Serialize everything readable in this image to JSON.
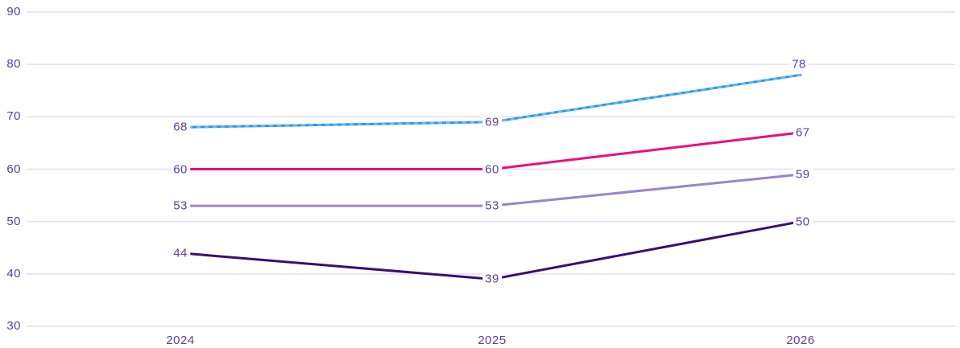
{
  "chart_data": {
    "type": "line",
    "title": "",
    "xlabel": "",
    "ylabel": "",
    "categories": [
      "2024",
      "2025",
      "2026"
    ],
    "y_ticks": [
      90,
      80,
      70,
      60,
      50,
      40,
      30
    ],
    "ylim": [
      30,
      90
    ],
    "grid": "horizontal-only",
    "legend": "none",
    "series": [
      {
        "name": "series-blue",
        "color": "#2598e8",
        "dash_overlay_color": "#6db9f0",
        "style": "solid-with-dotted-texture",
        "values": [
          68,
          69,
          78
        ],
        "labels": [
          "68",
          "69",
          "78"
        ],
        "label_placements": [
          "center",
          "center",
          "above"
        ]
      },
      {
        "name": "series-pink",
        "color": "#ee0c7c",
        "style": "solid",
        "values": [
          60,
          60,
          67
        ],
        "labels": [
          "60",
          "60",
          "67"
        ],
        "label_placements": [
          "center",
          "center",
          "right"
        ]
      },
      {
        "name": "series-light-purple",
        "color": "#9a83d0",
        "style": "solid",
        "values": [
          53,
          53,
          59
        ],
        "labels": [
          "53",
          "53",
          "59"
        ],
        "label_placements": [
          "center",
          "center",
          "right"
        ]
      },
      {
        "name": "series-dark-purple",
        "color": "#390e72",
        "style": "solid",
        "values": [
          44,
          39,
          50
        ],
        "labels": [
          "44",
          "39",
          "50"
        ],
        "label_placements": [
          "center",
          "center",
          "right"
        ]
      }
    ],
    "colors": {
      "axis_text": "#5c3da0",
      "gridline": "#e7dbf5",
      "background": "#ffffff"
    }
  }
}
